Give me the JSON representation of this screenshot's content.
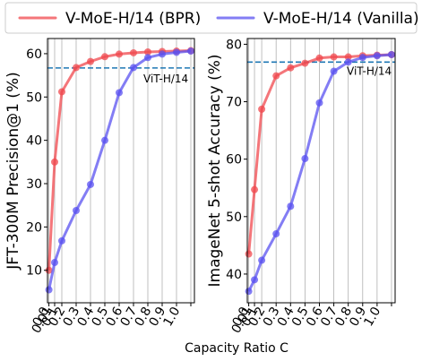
{
  "figure": {
    "shared_xlabel": "Capacity Ratio C"
  },
  "chart_data": [
    {
      "type": "line",
      "xlabel": "",
      "ylabel": "JFT-300M Precision@1 (%)",
      "x": [
        0.01,
        0.05,
        0.1,
        0.2,
        0.3,
        0.4,
        0.5,
        0.6,
        0.7,
        0.8,
        0.9,
        1.0
      ],
      "xtick_labels": [
        "0.0",
        "0.01",
        "0.1",
        "0.2",
        "0.3",
        "0.4",
        "0.5",
        "0.6",
        "0.7",
        "0.8",
        "0.9",
        "1.0"
      ],
      "ylim": [
        2.5,
        63.5
      ],
      "yticks": [
        10,
        20,
        30,
        40,
        50,
        60
      ],
      "grid": "vertical",
      "series": [
        {
          "name": "V-MoE-H/14 (BPR)",
          "color": "#f0484e",
          "values": [
            10.0,
            35.0,
            51.2,
            56.8,
            58.2,
            59.3,
            59.9,
            60.2,
            60.4,
            60.5,
            60.6,
            60.7
          ]
        },
        {
          "name": "V-MoE-H/14 (Vanilla)",
          "color": "#5a52f0",
          "values": [
            5.5,
            11.8,
            16.8,
            23.8,
            29.8,
            40.0,
            51.0,
            56.8,
            59.1,
            59.9,
            60.3,
            60.6
          ]
        }
      ],
      "reference_line": {
        "label": "ViT-H/14",
        "value": 56.7,
        "color": "#1f77b4"
      }
    },
    {
      "type": "line",
      "xlabel": "",
      "ylabel": "ImageNet 5-shot Accuracy (%)",
      "x": [
        0.01,
        0.05,
        0.1,
        0.2,
        0.3,
        0.4,
        0.5,
        0.6,
        0.7,
        0.8,
        0.9,
        1.0
      ],
      "xtick_labels": [
        "0.0",
        "0.01",
        "0.1",
        "0.2",
        "0.3",
        "0.4",
        "0.5",
        "0.6",
        "0.7",
        "0.8",
        "0.9",
        "1.0"
      ],
      "ylim": [
        35.0,
        81.0
      ],
      "yticks": [
        40,
        50,
        60,
        70,
        80
      ],
      "grid": "vertical",
      "series": [
        {
          "name": "V-MoE-H/14 (BPR)",
          "color": "#f0484e",
          "values": [
            43.5,
            54.7,
            68.7,
            74.5,
            75.9,
            76.7,
            77.6,
            77.8,
            77.8,
            78.0,
            78.1,
            78.2
          ]
        },
        {
          "name": "V-MoE-H/14 (Vanilla)",
          "color": "#5a52f0",
          "values": [
            37.0,
            39.0,
            42.4,
            47.0,
            51.8,
            60.1,
            69.8,
            75.3,
            76.9,
            77.7,
            78.0,
            78.2
          ]
        }
      ],
      "reference_line": {
        "label": "ViT-H/14",
        "value": 76.9,
        "color": "#1f77b4"
      }
    }
  ]
}
